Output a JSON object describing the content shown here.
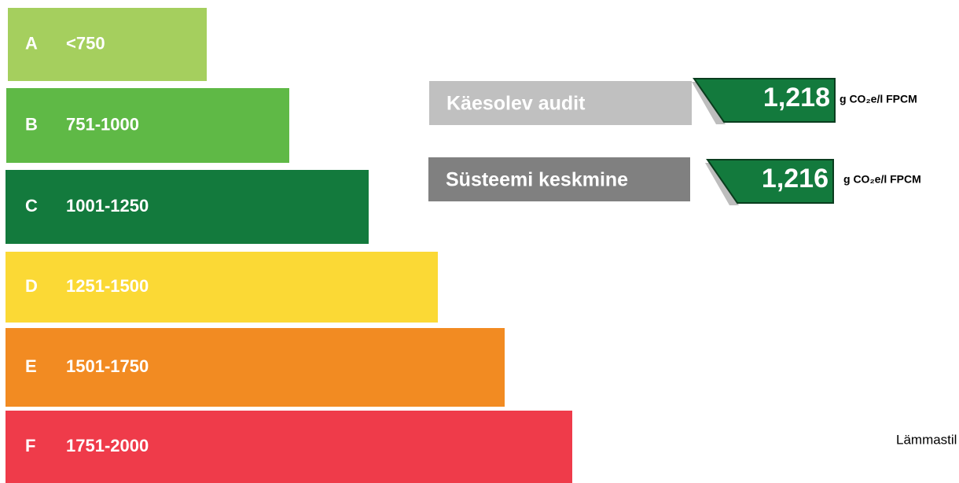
{
  "bands": [
    {
      "letter": "A",
      "range": "<750",
      "color": "#a5cf5e"
    },
    {
      "letter": "B",
      "range": "751-1000",
      "color": "#5fb946"
    },
    {
      "letter": "C",
      "range": "1001-1250",
      "color": "#137a3d"
    },
    {
      "letter": "D",
      "range": "1251-1500",
      "color": "#fbd935"
    },
    {
      "letter": "E",
      "range": "1501-1750",
      "color": "#f28b22"
    },
    {
      "letter": "F",
      "range": "1751-2000",
      "color": "#ef3b4a"
    }
  ],
  "indicators": [
    {
      "label": "Käesolev audit",
      "value": "1,218",
      "unit": "g CO₂e/l FPCM",
      "label_color": "#c0c0c0"
    },
    {
      "label": "Süsteemi keskmine",
      "value": "1,216",
      "unit": "g CO₂e/l FPCM",
      "label_color": "#808080"
    }
  ],
  "side_text": "Lämmastil"
}
